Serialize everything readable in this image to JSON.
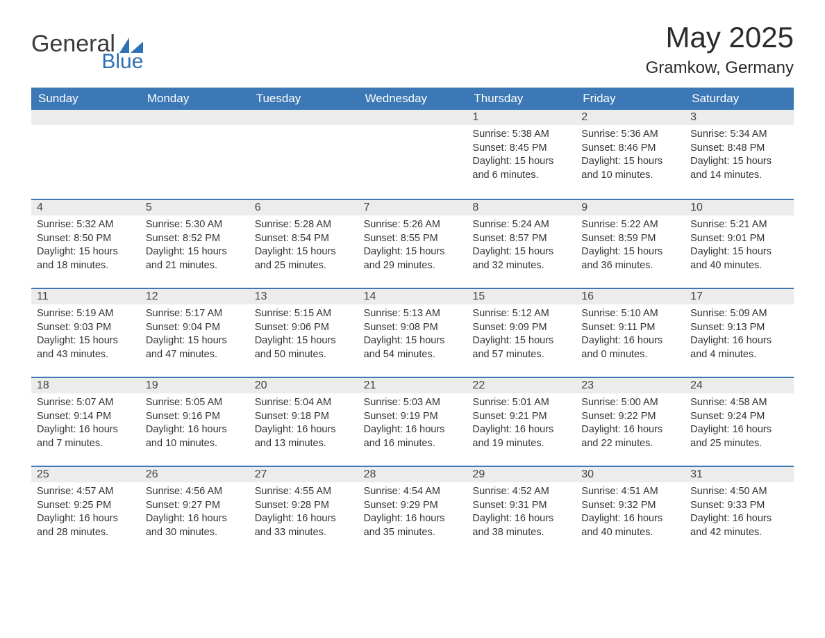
{
  "brand": {
    "general": "General",
    "blue": "Blue"
  },
  "title": "May 2025",
  "location": "Gramkow, Germany",
  "colors": {
    "header_bg": "#3b78b5",
    "header_text": "#ffffff",
    "daynum_bg": "#ececec",
    "text": "#333333",
    "divider": "#3b78b5",
    "brand_blue": "#2f6fb3"
  },
  "day_names": [
    "Sunday",
    "Monday",
    "Tuesday",
    "Wednesday",
    "Thursday",
    "Friday",
    "Saturday"
  ],
  "weeks": [
    [
      {
        "day": null
      },
      {
        "day": null
      },
      {
        "day": null
      },
      {
        "day": null
      },
      {
        "day": "1",
        "sunrise": "5:38 AM",
        "sunset": "8:45 PM",
        "daylight": "15 hours and 6 minutes."
      },
      {
        "day": "2",
        "sunrise": "5:36 AM",
        "sunset": "8:46 PM",
        "daylight": "15 hours and 10 minutes."
      },
      {
        "day": "3",
        "sunrise": "5:34 AM",
        "sunset": "8:48 PM",
        "daylight": "15 hours and 14 minutes."
      }
    ],
    [
      {
        "day": "4",
        "sunrise": "5:32 AM",
        "sunset": "8:50 PM",
        "daylight": "15 hours and 18 minutes."
      },
      {
        "day": "5",
        "sunrise": "5:30 AM",
        "sunset": "8:52 PM",
        "daylight": "15 hours and 21 minutes."
      },
      {
        "day": "6",
        "sunrise": "5:28 AM",
        "sunset": "8:54 PM",
        "daylight": "15 hours and 25 minutes."
      },
      {
        "day": "7",
        "sunrise": "5:26 AM",
        "sunset": "8:55 PM",
        "daylight": "15 hours and 29 minutes."
      },
      {
        "day": "8",
        "sunrise": "5:24 AM",
        "sunset": "8:57 PM",
        "daylight": "15 hours and 32 minutes."
      },
      {
        "day": "9",
        "sunrise": "5:22 AM",
        "sunset": "8:59 PM",
        "daylight": "15 hours and 36 minutes."
      },
      {
        "day": "10",
        "sunrise": "5:21 AM",
        "sunset": "9:01 PM",
        "daylight": "15 hours and 40 minutes."
      }
    ],
    [
      {
        "day": "11",
        "sunrise": "5:19 AM",
        "sunset": "9:03 PM",
        "daylight": "15 hours and 43 minutes."
      },
      {
        "day": "12",
        "sunrise": "5:17 AM",
        "sunset": "9:04 PM",
        "daylight": "15 hours and 47 minutes."
      },
      {
        "day": "13",
        "sunrise": "5:15 AM",
        "sunset": "9:06 PM",
        "daylight": "15 hours and 50 minutes."
      },
      {
        "day": "14",
        "sunrise": "5:13 AM",
        "sunset": "9:08 PM",
        "daylight": "15 hours and 54 minutes."
      },
      {
        "day": "15",
        "sunrise": "5:12 AM",
        "sunset": "9:09 PM",
        "daylight": "15 hours and 57 minutes."
      },
      {
        "day": "16",
        "sunrise": "5:10 AM",
        "sunset": "9:11 PM",
        "daylight": "16 hours and 0 minutes."
      },
      {
        "day": "17",
        "sunrise": "5:09 AM",
        "sunset": "9:13 PM",
        "daylight": "16 hours and 4 minutes."
      }
    ],
    [
      {
        "day": "18",
        "sunrise": "5:07 AM",
        "sunset": "9:14 PM",
        "daylight": "16 hours and 7 minutes."
      },
      {
        "day": "19",
        "sunrise": "5:05 AM",
        "sunset": "9:16 PM",
        "daylight": "16 hours and 10 minutes."
      },
      {
        "day": "20",
        "sunrise": "5:04 AM",
        "sunset": "9:18 PM",
        "daylight": "16 hours and 13 minutes."
      },
      {
        "day": "21",
        "sunrise": "5:03 AM",
        "sunset": "9:19 PM",
        "daylight": "16 hours and 16 minutes."
      },
      {
        "day": "22",
        "sunrise": "5:01 AM",
        "sunset": "9:21 PM",
        "daylight": "16 hours and 19 minutes."
      },
      {
        "day": "23",
        "sunrise": "5:00 AM",
        "sunset": "9:22 PM",
        "daylight": "16 hours and 22 minutes."
      },
      {
        "day": "24",
        "sunrise": "4:58 AM",
        "sunset": "9:24 PM",
        "daylight": "16 hours and 25 minutes."
      }
    ],
    [
      {
        "day": "25",
        "sunrise": "4:57 AM",
        "sunset": "9:25 PM",
        "daylight": "16 hours and 28 minutes."
      },
      {
        "day": "26",
        "sunrise": "4:56 AM",
        "sunset": "9:27 PM",
        "daylight": "16 hours and 30 minutes."
      },
      {
        "day": "27",
        "sunrise": "4:55 AM",
        "sunset": "9:28 PM",
        "daylight": "16 hours and 33 minutes."
      },
      {
        "day": "28",
        "sunrise": "4:54 AM",
        "sunset": "9:29 PM",
        "daylight": "16 hours and 35 minutes."
      },
      {
        "day": "29",
        "sunrise": "4:52 AM",
        "sunset": "9:31 PM",
        "daylight": "16 hours and 38 minutes."
      },
      {
        "day": "30",
        "sunrise": "4:51 AM",
        "sunset": "9:32 PM",
        "daylight": "16 hours and 40 minutes."
      },
      {
        "day": "31",
        "sunrise": "4:50 AM",
        "sunset": "9:33 PM",
        "daylight": "16 hours and 42 minutes."
      }
    ]
  ],
  "labels": {
    "sunrise": "Sunrise:",
    "sunset": "Sunset:",
    "daylight": "Daylight:"
  }
}
